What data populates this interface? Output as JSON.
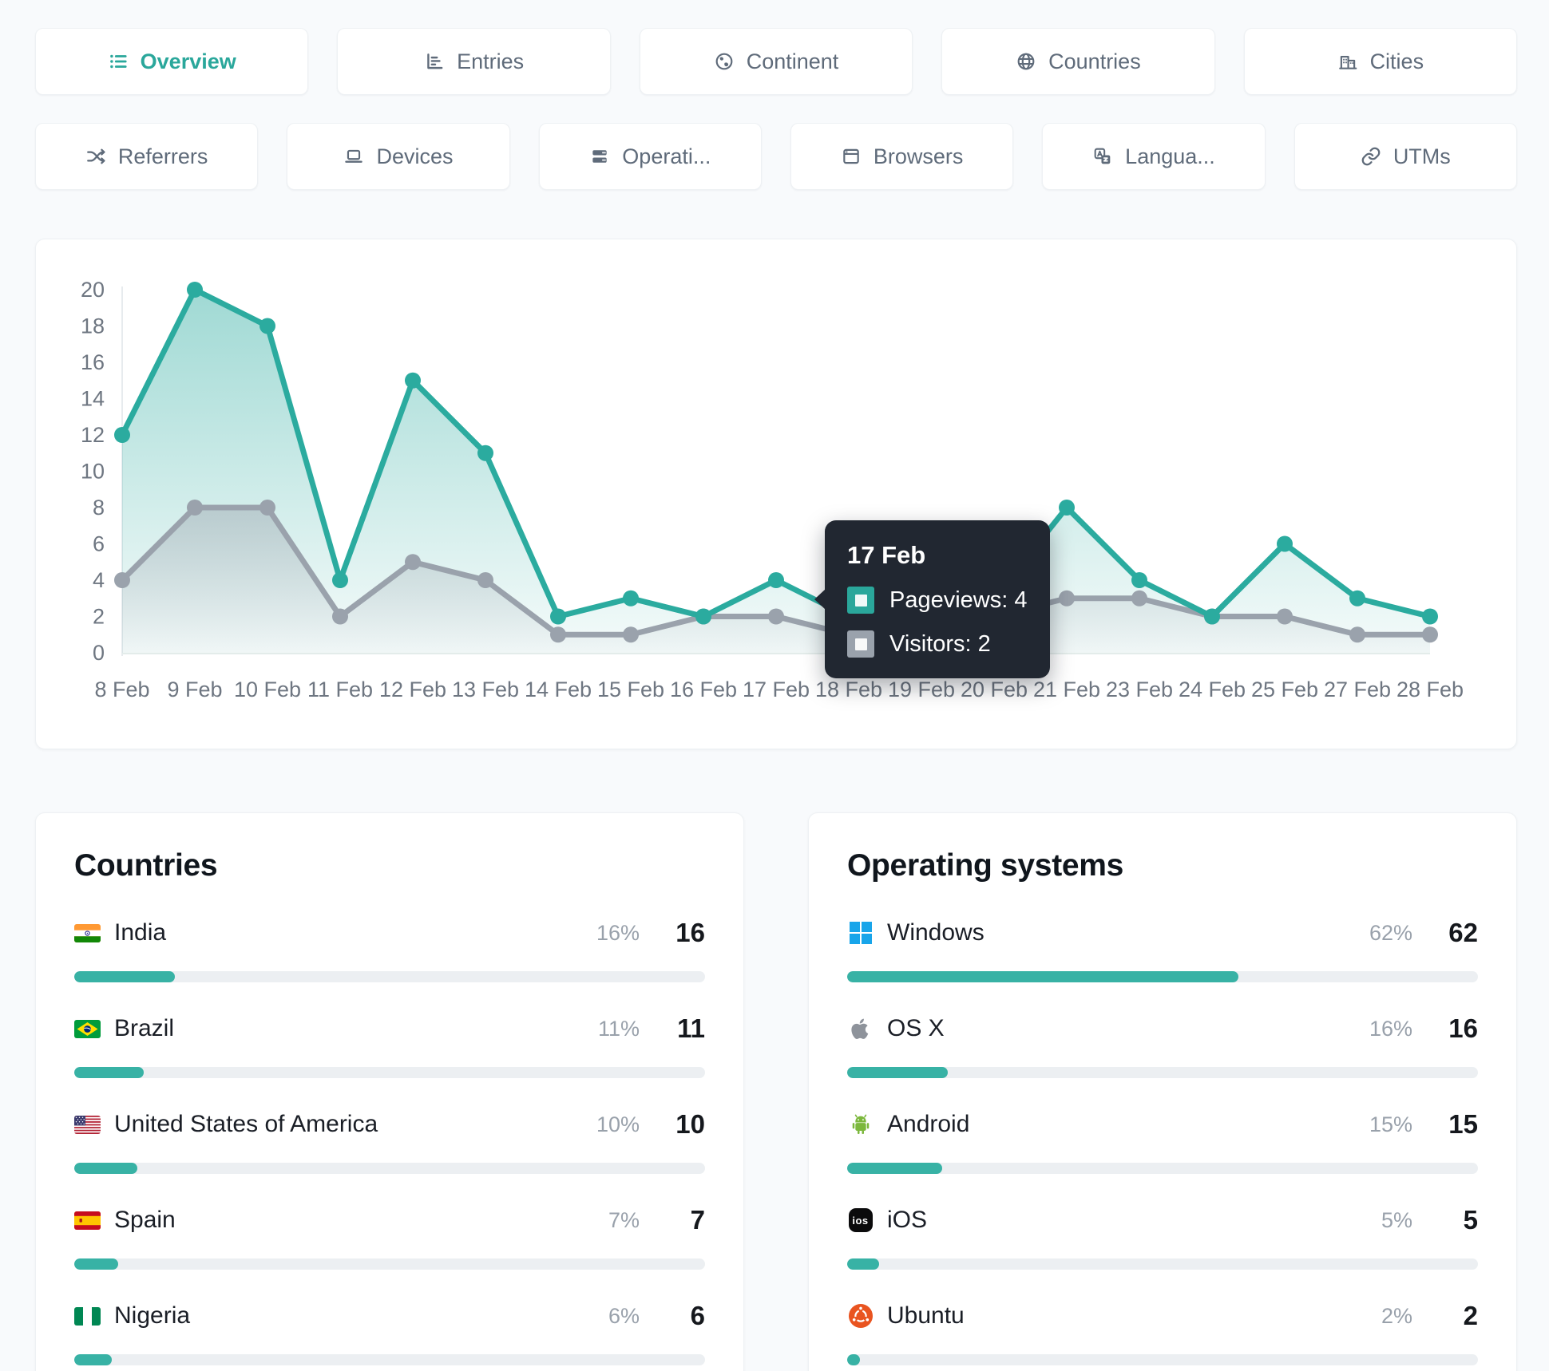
{
  "tabs_row1": [
    {
      "label": "Overview",
      "active": true
    },
    {
      "label": "Entries"
    },
    {
      "label": "Continent"
    },
    {
      "label": "Countries"
    },
    {
      "label": "Cities"
    }
  ],
  "tabs_row2": [
    {
      "label": "Referrers"
    },
    {
      "label": "Devices"
    },
    {
      "label": "Operati..."
    },
    {
      "label": "Browsers"
    },
    {
      "label": "Langua..."
    },
    {
      "label": "UTMs"
    }
  ],
  "chart_data": {
    "type": "line",
    "x": [
      "8 Feb",
      "9 Feb",
      "10 Feb",
      "11 Feb",
      "12 Feb",
      "13 Feb",
      "14 Feb",
      "15 Feb",
      "16 Feb",
      "17 Feb",
      "18 Feb",
      "19 Feb",
      "20 Feb",
      "21 Feb",
      "23 Feb",
      "24 Feb",
      "25 Feb",
      "27 Feb",
      "28 Feb"
    ],
    "ylim": [
      0,
      20
    ],
    "ytick_step": 2,
    "grid": false,
    "legend_position": "tooltip",
    "series": [
      {
        "name": "Pageviews",
        "color": "#2bab9f",
        "values": [
          12,
          20,
          18,
          4,
          15,
          11,
          2,
          3,
          2,
          4,
          2,
          2,
          3,
          8,
          4,
          2,
          6,
          3,
          2
        ]
      },
      {
        "name": "Visitors",
        "color": "#9aa2ac",
        "values": [
          4,
          8,
          8,
          2,
          5,
          4,
          1,
          1,
          2,
          2,
          1,
          1,
          2,
          3,
          3,
          2,
          2,
          1,
          1
        ]
      }
    ],
    "tooltip": {
      "title": "17 Feb",
      "rows": [
        {
          "text": "Pageviews: 4",
          "color": "#2aa79b"
        },
        {
          "text": "Visitors: 2",
          "color": "#9aa2ac"
        }
      ]
    }
  },
  "countries_panel": {
    "title": "Countries",
    "rows": [
      {
        "name": "India",
        "percent": "16%",
        "count": "16",
        "bar": 16,
        "flag": "india"
      },
      {
        "name": "Brazil",
        "percent": "11%",
        "count": "11",
        "bar": 11,
        "flag": "brazil"
      },
      {
        "name": "United States of America",
        "percent": "10%",
        "count": "10",
        "bar": 10,
        "flag": "usa"
      },
      {
        "name": "Spain",
        "percent": "7%",
        "count": "7",
        "bar": 7,
        "flag": "spain"
      },
      {
        "name": "Nigeria",
        "percent": "6%",
        "count": "6",
        "bar": 6,
        "flag": "nigeria"
      }
    ]
  },
  "os_panel": {
    "title": "Operating systems",
    "rows": [
      {
        "name": "Windows",
        "percent": "62%",
        "count": "62",
        "bar": 62
      },
      {
        "name": "OS X",
        "percent": "16%",
        "count": "16",
        "bar": 16
      },
      {
        "name": "Android",
        "percent": "15%",
        "count": "15",
        "bar": 15
      },
      {
        "name": "iOS",
        "percent": "5%",
        "count": "5",
        "bar": 5
      },
      {
        "name": "Ubuntu",
        "percent": "2%",
        "count": "2",
        "bar": 2
      }
    ]
  }
}
